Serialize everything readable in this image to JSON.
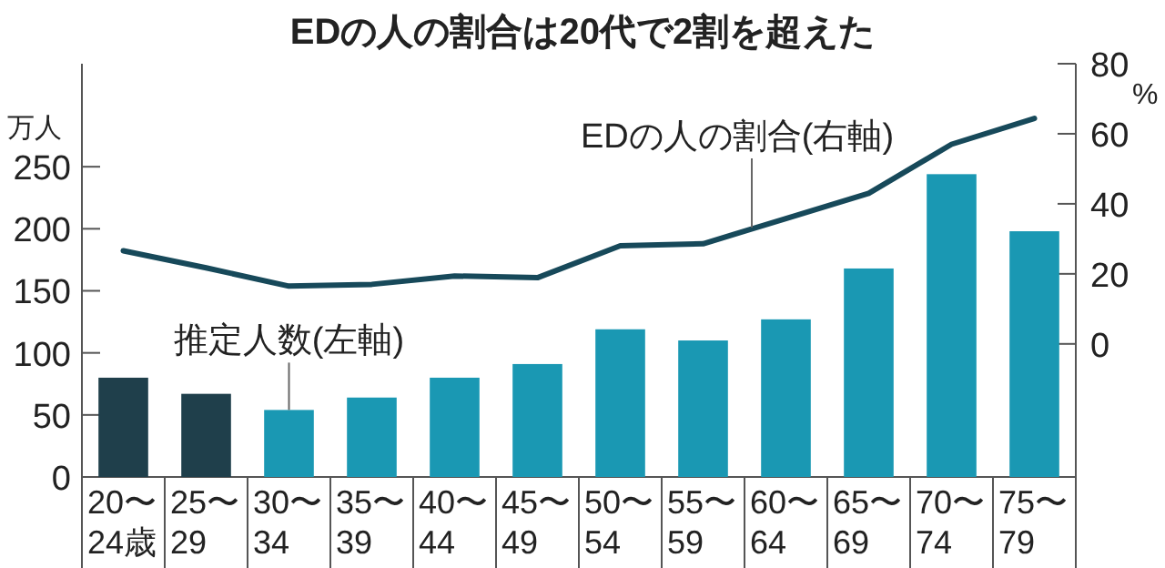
{
  "chart_data": {
    "type": "bar",
    "title": "EDの人の割合は20代で2割を超えた",
    "ylabel": "万人",
    "y2label": "%",
    "categories": [
      "20〜\n24歳",
      "25〜\n29",
      "30〜\n34",
      "35〜\n39",
      "40〜\n44",
      "45〜\n49",
      "50〜\n54",
      "55〜\n59",
      "60〜\n64",
      "65〜\n69",
      "70〜\n74",
      "75〜\n79"
    ],
    "series": [
      {
        "name": "推定人数(左軸)",
        "colors": [
          "#1f3f4b",
          "#1f3f4b",
          "#1a98b3",
          "#1a98b3",
          "#1a98b3",
          "#1a98b3",
          "#1a98b3",
          "#1a98b3",
          "#1a98b3",
          "#1a98b3",
          "#1a98b3",
          "#1a98b3"
        ],
        "values": [
          80,
          67,
          54,
          64,
          80,
          91,
          119,
          110,
          127,
          168,
          244,
          198
        ]
      },
      {
        "name": "EDの人の割合(右軸)",
        "type": "line",
        "axis": "y2",
        "color": "#17495a",
        "values": [
          26.6,
          21.7,
          16.5,
          17,
          19.4,
          18.9,
          28,
          28.6,
          35.8,
          43,
          57,
          64.4
        ]
      }
    ],
    "ylim": [
      0,
      333
    ],
    "yticks": [
      0,
      50,
      100,
      150,
      200,
      250
    ],
    "y2lim": [
      -38,
      80
    ],
    "y2ticks": [
      0,
      20,
      40,
      60,
      80
    ],
    "grid": false
  }
}
